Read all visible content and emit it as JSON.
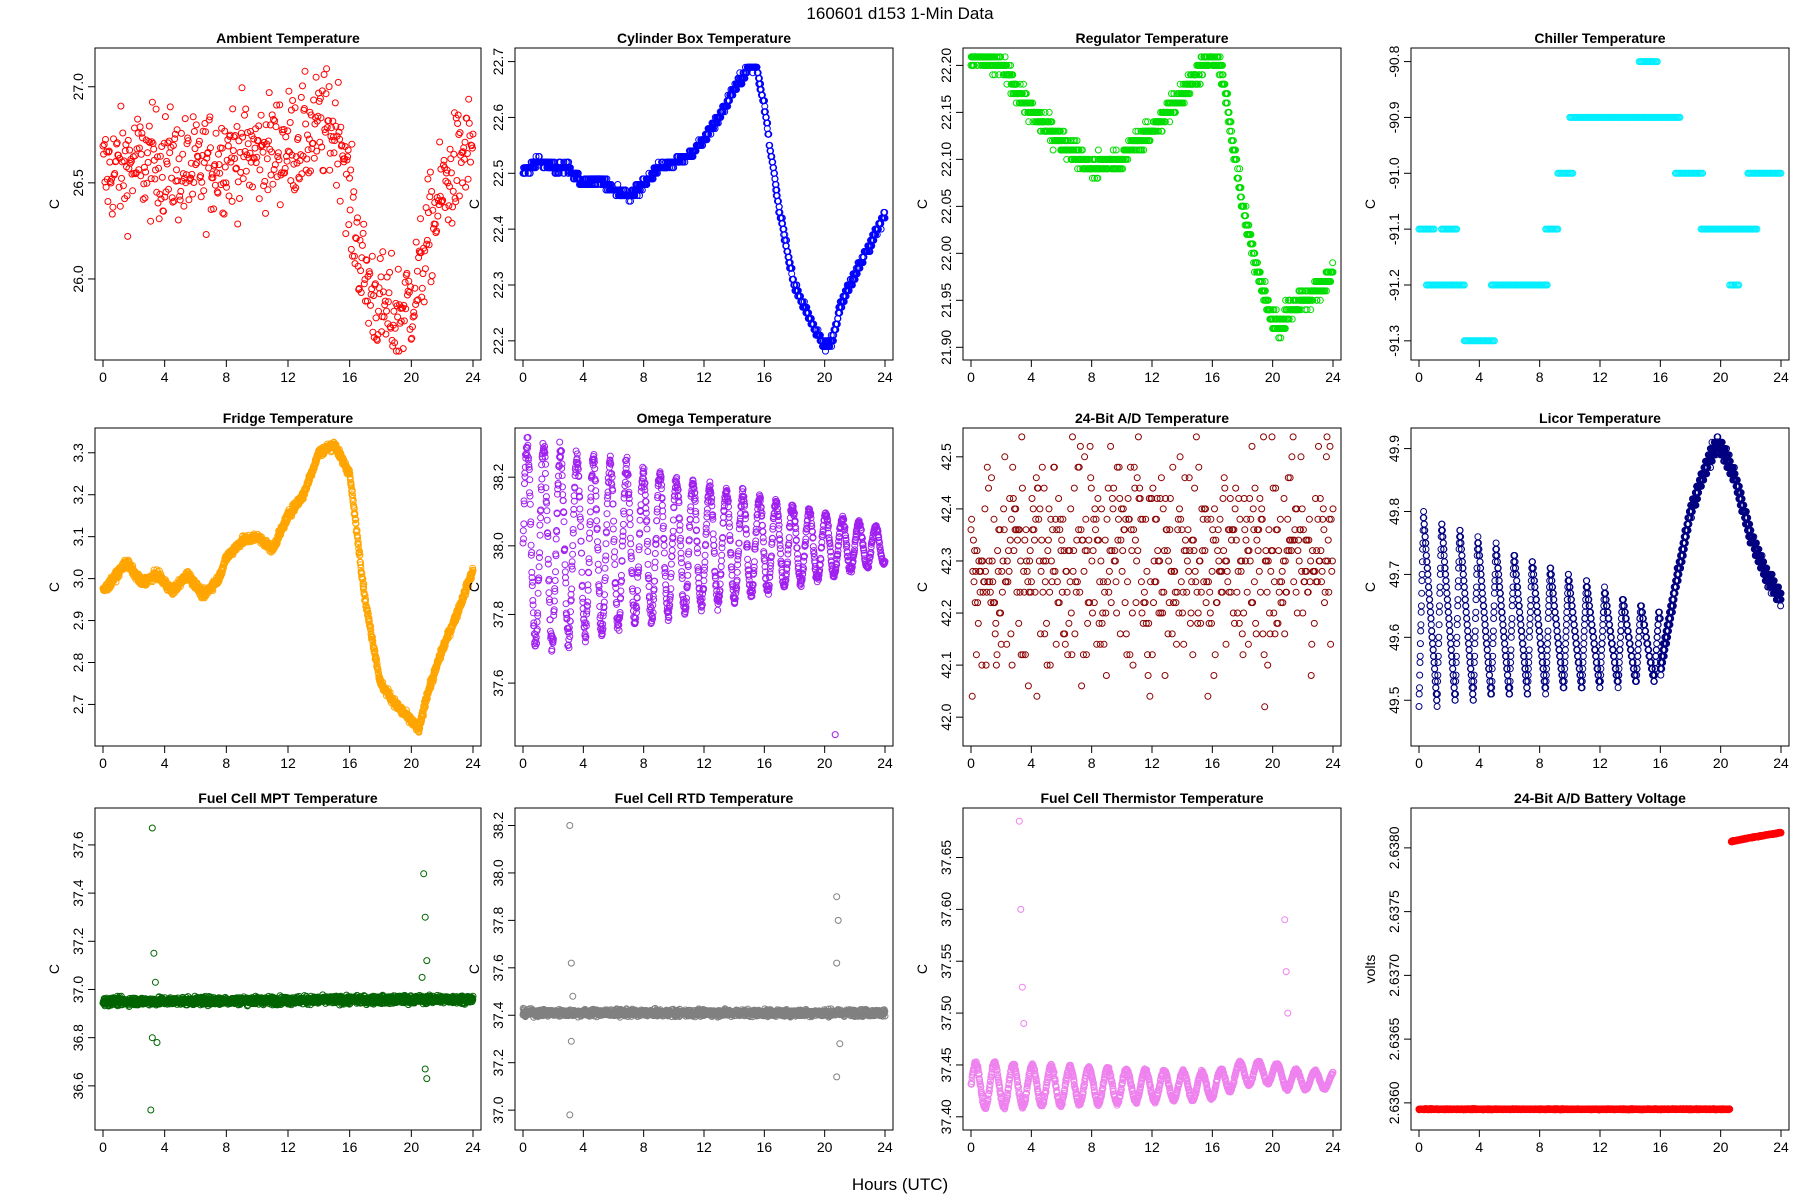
{
  "figure": {
    "title": "160601    d153    1-Min Data",
    "xlabel": "Hours (UTC)"
  },
  "chart_data": [
    {
      "type": "scatter",
      "title": "Ambient Temperature",
      "ylabel": "C",
      "color": "#ff0000",
      "xlim": [
        0,
        24
      ],
      "ylim": [
        25.62,
        27.16
      ],
      "x_ticks": [
        0,
        4,
        8,
        12,
        16,
        20,
        24
      ],
      "y_ticks": [
        26.0,
        26.5,
        27.0
      ],
      "y_tick_labels": [
        "26.0",
        "26.5",
        "27.0"
      ],
      "series": {
        "x": [
          0,
          2,
          4,
          6,
          8,
          10,
          12,
          13.5,
          14.5,
          15.5,
          16,
          17,
          18,
          19,
          20,
          20.5,
          21,
          22,
          23,
          24
        ],
        "y": [
          26.55,
          26.6,
          26.6,
          26.55,
          26.65,
          26.65,
          26.7,
          26.75,
          26.8,
          26.75,
          26.4,
          26.0,
          25.85,
          25.8,
          25.9,
          26.0,
          26.2,
          26.45,
          26.6,
          26.7
        ],
        "noise": 0.14,
        "step": 0,
        "density": 1
      }
    },
    {
      "type": "scatter",
      "title": "Cylinder Box Temperature",
      "ylabel": "C",
      "color": "#0000ff",
      "xlim": [
        0,
        24
      ],
      "ylim": [
        22.18,
        22.71
      ],
      "x_ticks": [
        0,
        4,
        8,
        12,
        16,
        20,
        24
      ],
      "y_ticks": [
        22.2,
        22.3,
        22.4,
        22.5,
        22.6,
        22.7
      ],
      "y_tick_labels": [
        "22.2",
        "22.3",
        "22.4",
        "22.5",
        "22.6",
        "22.7"
      ],
      "series": {
        "x": [
          0,
          1,
          2,
          3,
          4,
          5,
          6,
          7,
          8,
          9,
          10,
          11,
          12,
          13,
          14,
          15,
          15.5,
          16,
          17,
          18,
          19,
          20,
          20.5,
          21,
          22,
          23,
          24
        ],
        "y": [
          22.5,
          22.52,
          22.51,
          22.51,
          22.48,
          22.49,
          22.47,
          22.46,
          22.48,
          22.51,
          22.52,
          22.53,
          22.56,
          22.6,
          22.65,
          22.69,
          22.69,
          22.62,
          22.43,
          22.3,
          22.24,
          22.19,
          22.2,
          22.26,
          22.32,
          22.37,
          22.43
        ],
        "noise": 0.004,
        "step": 0.01,
        "density": 2
      }
    },
    {
      "type": "scatter",
      "title": "Regulator Temperature",
      "ylabel": "C",
      "color": "#00dd00",
      "xlim": [
        0,
        24
      ],
      "ylim": [
        21.895,
        22.21
      ],
      "x_ticks": [
        0,
        4,
        8,
        12,
        16,
        20,
        24
      ],
      "y_ticks": [
        21.9,
        21.95,
        22.0,
        22.05,
        22.1,
        22.15,
        22.2
      ],
      "y_tick_labels": [
        "21.90",
        "21.95",
        "22.00",
        "22.05",
        "22.10",
        "22.15",
        "22.20"
      ],
      "series": {
        "x": [
          0,
          2,
          4,
          6,
          8,
          10,
          11,
          12,
          13,
          14,
          15,
          16,
          16.5,
          17,
          18,
          19,
          20,
          20.5,
          21,
          22,
          23,
          24
        ],
        "y": [
          22.21,
          22.2,
          22.15,
          22.12,
          22.09,
          22.1,
          22.12,
          22.13,
          22.15,
          22.17,
          22.19,
          22.21,
          22.2,
          22.16,
          22.05,
          21.98,
          21.93,
          21.92,
          21.94,
          21.95,
          21.96,
          21.98
        ],
        "noise": 0.006,
        "step": 0.01,
        "density": 2
      }
    },
    {
      "type": "scatter",
      "title": "Chiller Temperature",
      "ylabel": "C",
      "color": "#00eeff",
      "xlim": [
        0,
        24
      ],
      "ylim": [
        -91.32,
        -90.79
      ],
      "x_ticks": [
        0,
        4,
        8,
        12,
        16,
        20,
        24
      ],
      "y_ticks": [
        -91.3,
        -91.2,
        -91.1,
        -91.0,
        -90.9,
        -90.8
      ],
      "y_tick_labels": [
        "-91.3",
        "-91.2",
        "-91.1",
        "-91.0",
        "-90.9",
        "-90.8"
      ],
      "segments": [
        {
          "x0": 0,
          "x1": 1.0,
          "y": -91.1
        },
        {
          "x0": 0.5,
          "x1": 3.0,
          "y": -91.2
        },
        {
          "x0": 1.5,
          "x1": 2.5,
          "y": -91.1
        },
        {
          "x0": 3.0,
          "x1": 5.0,
          "y": -91.3
        },
        {
          "x0": 4.8,
          "x1": 8.5,
          "y": -91.2
        },
        {
          "x0": 8.4,
          "x1": 9.2,
          "y": -91.1
        },
        {
          "x0": 9.2,
          "x1": 10.2,
          "y": -91.0
        },
        {
          "x0": 10.0,
          "x1": 17.3,
          "y": -90.9
        },
        {
          "x0": 14.6,
          "x1": 15.8,
          "y": -90.8
        },
        {
          "x0": 17.0,
          "x1": 18.8,
          "y": -91.0
        },
        {
          "x0": 18.7,
          "x1": 22.4,
          "y": -91.1
        },
        {
          "x0": 20.6,
          "x1": 21.2,
          "y": -91.2
        },
        {
          "x0": 21.8,
          "x1": 24.0,
          "y": -91.0
        }
      ]
    },
    {
      "type": "scatter",
      "title": "Fridge Temperature",
      "ylabel": "C",
      "color": "#ffa500",
      "xlim": [
        0,
        24
      ],
      "ylim": [
        2.62,
        3.34
      ],
      "x_ticks": [
        0,
        4,
        8,
        12,
        16,
        20,
        24
      ],
      "y_ticks": [
        2.7,
        2.8,
        2.9,
        3.0,
        3.1,
        3.2,
        3.3
      ],
      "y_tick_labels": [
        "2.7",
        "2.8",
        "2.9",
        "3.0",
        "3.1",
        "3.2",
        "3.3"
      ],
      "series": {
        "x": [
          0,
          0.5,
          1.5,
          2.5,
          3.5,
          4.5,
          5.5,
          6.5,
          7.5,
          8,
          9,
          10,
          11,
          12,
          13,
          14,
          15,
          16,
          17,
          18,
          19,
          20,
          20.5,
          21,
          22,
          23,
          24
        ],
        "y": [
          2.97,
          2.99,
          3.04,
          2.99,
          3.01,
          2.97,
          3.01,
          2.96,
          3.0,
          3.05,
          3.09,
          3.1,
          3.07,
          3.15,
          3.2,
          3.3,
          3.32,
          3.25,
          2.95,
          2.75,
          2.7,
          2.66,
          2.64,
          2.72,
          2.83,
          2.92,
          3.02
        ],
        "noise": 0.005,
        "step": 0,
        "density": 3
      }
    },
    {
      "type": "scatter",
      "title": "Omega Temperature",
      "ylabel": "C",
      "color": "#a020f0",
      "xlim": [
        0,
        24
      ],
      "ylim": [
        37.44,
        38.32
      ],
      "x_ticks": [
        0,
        4,
        8,
        12,
        16,
        20,
        24
      ],
      "y_ticks": [
        37.6,
        37.8,
        38.0,
        38.2
      ],
      "y_tick_labels": [
        "37.6",
        "37.8",
        "38.0",
        "38.2"
      ],
      "oscillation": {
        "center": 38.0,
        "amp_start": 0.3,
        "amp_end": 0.05,
        "period": 1.1
      },
      "outliers": [
        {
          "x": 20.7,
          "y": 37.45
        }
      ]
    },
    {
      "type": "scatter",
      "title": "24-Bit A/D Temperature",
      "ylabel": "C",
      "color": "#8b0000",
      "xlim": [
        0,
        24
      ],
      "ylim": [
        41.96,
        42.54
      ],
      "x_ticks": [
        0,
        4,
        8,
        12,
        16,
        20,
        24
      ],
      "y_ticks": [
        42.0,
        42.1,
        42.2,
        42.3,
        42.4,
        42.5
      ],
      "y_tick_labels": [
        "42.0",
        "42.1",
        "42.2",
        "42.3",
        "42.4",
        "42.5"
      ],
      "series": {
        "x": [
          0,
          4,
          8,
          12,
          16,
          20,
          24
        ],
        "y": [
          42.28,
          42.3,
          42.31,
          42.31,
          42.31,
          42.31,
          42.32
        ],
        "noise": 0.11,
        "step": 0.02,
        "density": 1
      }
    },
    {
      "type": "scatter",
      "title": "Licor Temperature",
      "ylabel": "C",
      "color": "#000080",
      "xlim": [
        0,
        24
      ],
      "ylim": [
        49.44,
        49.92
      ],
      "x_ticks": [
        0,
        4,
        8,
        12,
        16,
        20,
        24
      ],
      "y_ticks": [
        49.5,
        49.6,
        49.7,
        49.8,
        49.9
      ],
      "y_tick_labels": [
        "49.5",
        "49.6",
        "49.7",
        "49.8",
        "49.9"
      ],
      "sawtooth": {
        "x0": 0,
        "x1": 16,
        "low": 49.49,
        "high": 49.8,
        "high_end": 49.64,
        "low_end": 49.53,
        "period": 1.2
      },
      "series": {
        "x": [
          16,
          17,
          18,
          19,
          19.8,
          20.3,
          21,
          22,
          23,
          24
        ],
        "y": [
          49.55,
          49.68,
          49.8,
          49.87,
          49.91,
          49.89,
          49.85,
          49.76,
          49.7,
          49.66
        ],
        "noise": 0.005,
        "step": 0.01,
        "density": 3
      }
    },
    {
      "type": "scatter",
      "title": "Fuel Cell MPT Temperature",
      "ylabel": "C",
      "color": "#006400",
      "xlim": [
        0,
        24
      ],
      "ylim": [
        36.45,
        37.72
      ],
      "x_ticks": [
        0,
        4,
        8,
        12,
        16,
        20,
        24
      ],
      "y_ticks": [
        36.6,
        36.8,
        37.0,
        37.2,
        37.4,
        37.6
      ],
      "y_tick_labels": [
        "36.6",
        "36.8",
        "37.0",
        "37.2",
        "37.4",
        "37.6"
      ],
      "series": {
        "x": [
          0,
          24
        ],
        "y": [
          36.95,
          36.96
        ],
        "noise": 0.008,
        "step": 0,
        "density": 3
      },
      "outliers": [
        {
          "x": 3.2,
          "y": 37.67
        },
        {
          "x": 3.3,
          "y": 37.15
        },
        {
          "x": 3.2,
          "y": 36.8
        },
        {
          "x": 3.1,
          "y": 36.5
        },
        {
          "x": 3.4,
          "y": 37.03
        },
        {
          "x": 3.5,
          "y": 36.78
        },
        {
          "x": 20.8,
          "y": 37.48
        },
        {
          "x": 20.9,
          "y": 37.3
        },
        {
          "x": 21.0,
          "y": 37.12
        },
        {
          "x": 20.9,
          "y": 36.67
        },
        {
          "x": 21.0,
          "y": 36.63
        },
        {
          "x": 20.7,
          "y": 37.05
        }
      ]
    },
    {
      "type": "scatter",
      "title": "Fuel Cell RTD Temperature",
      "ylabel": "C",
      "color": "#808080",
      "xlim": [
        0,
        24
      ],
      "ylim": [
        36.95,
        38.24
      ],
      "x_ticks": [
        0,
        4,
        8,
        12,
        16,
        20,
        24
      ],
      "y_ticks": [
        37.0,
        37.2,
        37.4,
        37.6,
        37.8,
        38.0,
        38.2
      ],
      "y_tick_labels": [
        "37.0",
        "37.2",
        "37.4",
        "37.6",
        "37.8",
        "38.0",
        "38.2"
      ],
      "series": {
        "x": [
          0,
          24
        ],
        "y": [
          37.41,
          37.41
        ],
        "noise": 0.007,
        "step": 0,
        "density": 3
      },
      "outliers": [
        {
          "x": 3.1,
          "y": 38.2
        },
        {
          "x": 3.2,
          "y": 37.62
        },
        {
          "x": 3.3,
          "y": 37.48
        },
        {
          "x": 3.2,
          "y": 37.29
        },
        {
          "x": 3.1,
          "y": 36.98
        },
        {
          "x": 20.8,
          "y": 37.9
        },
        {
          "x": 20.9,
          "y": 37.8
        },
        {
          "x": 20.8,
          "y": 37.62
        },
        {
          "x": 21.0,
          "y": 37.28
        },
        {
          "x": 20.8,
          "y": 37.14
        }
      ]
    },
    {
      "type": "scatter",
      "title": "Fuel Cell Thermistor Temperature",
      "ylabel": "C",
      "color": "#ee82ee",
      "xlim": [
        0,
        24
      ],
      "ylim": [
        37.395,
        37.69
      ],
      "x_ticks": [
        0,
        4,
        8,
        12,
        16,
        20,
        24
      ],
      "y_ticks": [
        37.4,
        37.45,
        37.5,
        37.55,
        37.6,
        37.65
      ],
      "y_tick_labels": [
        "37.40",
        "37.45",
        "37.50",
        "37.55",
        "37.60",
        "37.65"
      ],
      "oscillation": {
        "center": 37.43,
        "amp_start": 0.022,
        "amp_end": 0.008,
        "period": 1.25,
        "drift": [
          [
            0,
            0
          ],
          [
            16,
            0
          ],
          [
            18,
            0.012
          ],
          [
            20,
            0.013
          ],
          [
            21,
            0.006
          ],
          [
            24,
            0.005
          ]
        ]
      },
      "outliers": [
        {
          "x": 3.2,
          "y": 37.685
        },
        {
          "x": 3.3,
          "y": 37.6
        },
        {
          "x": 3.4,
          "y": 37.525
        },
        {
          "x": 3.5,
          "y": 37.49
        },
        {
          "x": 20.8,
          "y": 37.59
        },
        {
          "x": 20.9,
          "y": 37.54
        },
        {
          "x": 21.0,
          "y": 37.5
        }
      ]
    },
    {
      "type": "scatter",
      "title": "24-Bit A/D Battery Voltage",
      "ylabel": "volts",
      "color": "#ff0000",
      "xlim": [
        0,
        24
      ],
      "ylim": [
        2.63585,
        2.63825
      ],
      "x_ticks": [
        0,
        4,
        8,
        12,
        16,
        20,
        24
      ],
      "y_ticks": [
        2.636,
        2.6365,
        2.637,
        2.6375,
        2.638
      ],
      "y_tick_labels": [
        "2.6360",
        "2.6365",
        "2.6370",
        "2.6375",
        "2.6380"
      ],
      "series": {
        "x": [
          0,
          20.6,
          20.65,
          20.7,
          22,
          24
        ],
        "y": [
          2.63595,
          2.63595,
          null,
          2.63805,
          2.63808,
          2.63812
        ],
        "noise": 2e-06,
        "step": 0,
        "density": 3
      }
    }
  ]
}
